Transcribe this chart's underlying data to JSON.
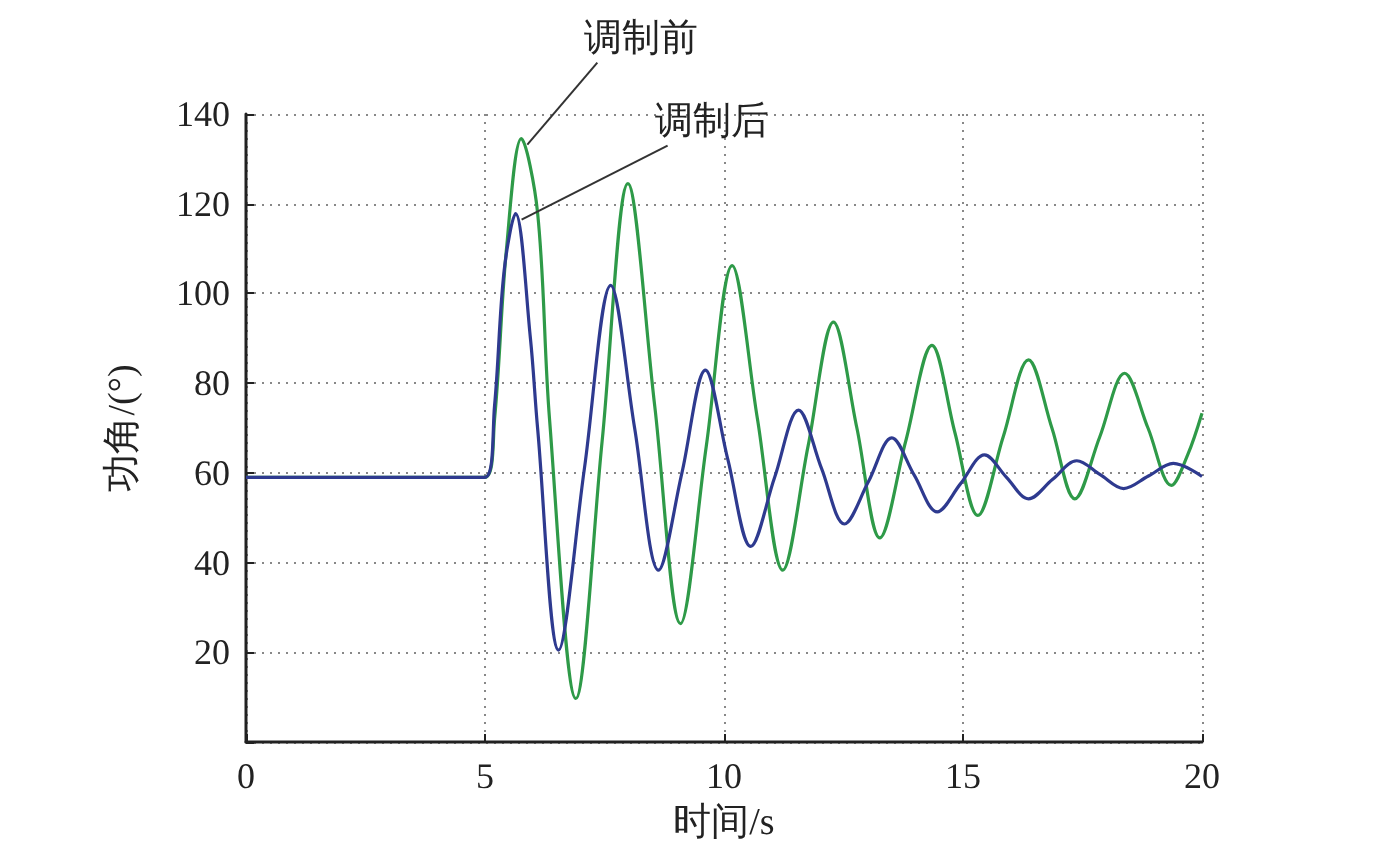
{
  "chart_data": {
    "type": "line",
    "xlabel": "时间/s",
    "ylabel": "功角/(°)",
    "xlim": [
      0,
      20
    ],
    "xticks": [
      0,
      5,
      10,
      15,
      20
    ],
    "ylim": [
      0,
      140
    ],
    "yticks": [
      20,
      40,
      60,
      80,
      100,
      120,
      140
    ],
    "grid": true,
    "marker": "none",
    "line_style": "solid",
    "annotations": [
      {
        "text": "调制前",
        "x": 5.76,
        "y": 134.5
      },
      {
        "text": "调制后",
        "x": 5.64,
        "y": 117.8
      }
    ],
    "series": [
      {
        "color": "#2e9a48",
        "x": [
          0,
          5,
          5.2,
          5.45,
          5.76,
          6.1,
          6.35,
          6.9,
          7.45,
          7.99,
          8.55,
          9.09,
          9.63,
          10.17,
          10.7,
          11.23,
          11.76,
          12.29,
          12.78,
          13.26,
          13.8,
          14.35,
          14.83,
          15.31,
          15.84,
          16.37,
          16.86,
          17.34,
          17.86,
          18.38,
          18.87,
          19.36,
          19.7,
          20
        ],
        "values": [
          59,
          59,
          72,
          110,
          134.5,
          118,
          72,
          9.7,
          67,
          124.5,
          75,
          26.4,
          66,
          106.2,
          72,
          38.3,
          66,
          93.6,
          70,
          45.5,
          67,
          88.4,
          69,
          50.5,
          68,
          85.2,
          70,
          54.2,
          68,
          82.2,
          70,
          57.2,
          64,
          73.3
        ]
      },
      {
        "color": "#2e3a8f",
        "x": [
          0,
          5,
          5.2,
          5.4,
          5.64,
          5.95,
          6.1,
          6.54,
          7.08,
          7.63,
          8.13,
          8.63,
          9.12,
          9.61,
          10.08,
          10.56,
          11.06,
          11.56,
          12.04,
          12.52,
          13.02,
          13.51,
          13.98,
          14.46,
          14.95,
          15.45,
          15.91,
          16.37,
          16.87,
          17.38,
          17.87,
          18.36,
          18.88,
          19.4,
          20
        ],
        "values": [
          59,
          59,
          75,
          105,
          117.8,
          90,
          70,
          20.5,
          61,
          101.8,
          70,
          38.3,
          60,
          82.9,
          63,
          43.6,
          59,
          74,
          61,
          48.6,
          58,
          67.8,
          59.5,
          51.3,
          57.6,
          64,
          59,
          54.2,
          58.5,
          62.7,
          59.6,
          56.5,
          59.3,
          62.1,
          59.2
        ]
      }
    ]
  }
}
